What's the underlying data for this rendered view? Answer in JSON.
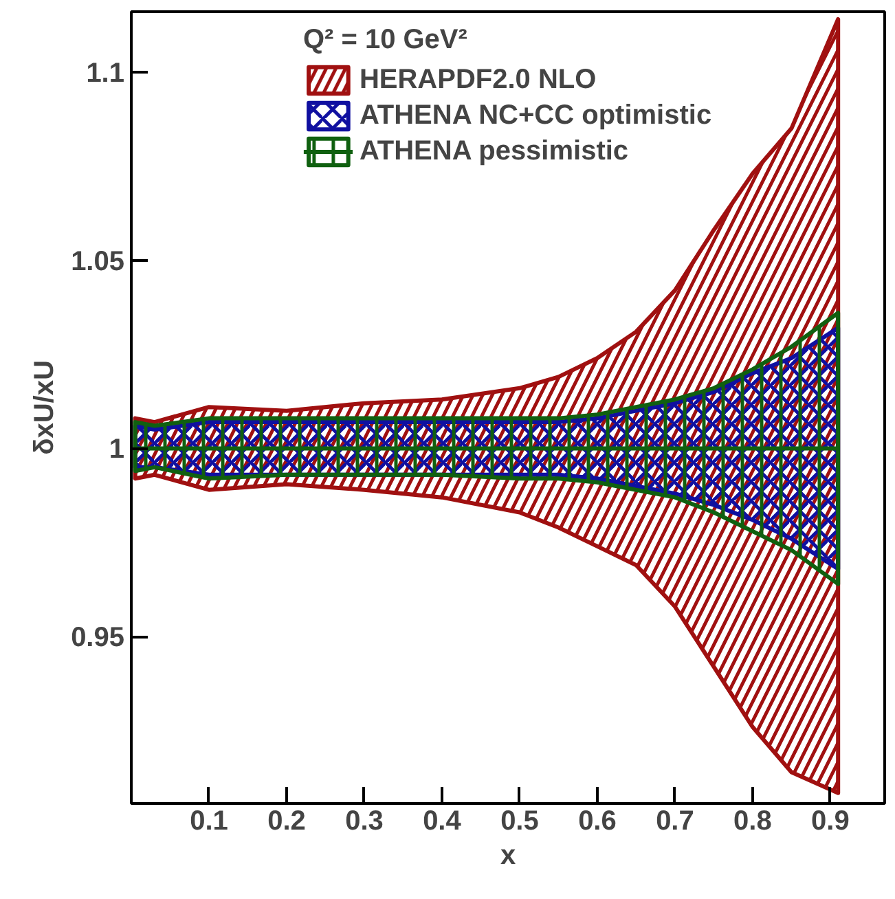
{
  "chart_data": {
    "type": "line",
    "xlabel": "x",
    "ylabel": "δxU/xU",
    "legend_title": "Q² = 10 GeV²",
    "x": [
      0.005,
      0.03,
      0.1,
      0.2,
      0.3,
      0.4,
      0.5,
      0.55,
      0.6,
      0.65,
      0.7,
      0.75,
      0.8,
      0.85,
      0.91
    ],
    "series": [
      {
        "name": "HERAPDF2.0 NLO",
        "color": "#a01010",
        "values": [
          null,
          null,
          null,
          null,
          null,
          null,
          null,
          null,
          null,
          null,
          null,
          null,
          null,
          null,
          null
        ],
        "lower": [
          0.992,
          0.993,
          0.989,
          0.9905,
          0.989,
          0.987,
          0.983,
          0.979,
          0.974,
          0.969,
          0.958,
          0.942,
          0.926,
          0.914,
          0.9085
        ],
        "upper": [
          1.008,
          1.007,
          1.011,
          1.01,
          1.012,
          1.013,
          1.016,
          1.019,
          1.024,
          1.031,
          1.042,
          1.058,
          1.073,
          1.085,
          1.114
        ]
      },
      {
        "name": "ATHENA NC+CC optimistic",
        "color": "#1010a0",
        "values": [
          null,
          null,
          null,
          null,
          null,
          null,
          null,
          null,
          null,
          null,
          null,
          null,
          null,
          null,
          null
        ],
        "lower": [
          0.995,
          0.995,
          0.993,
          0.993,
          0.993,
          0.993,
          0.993,
          0.993,
          0.992,
          0.99,
          0.988,
          0.985,
          0.981,
          0.976,
          0.968
        ],
        "upper": [
          1.006,
          1.005,
          1.007,
          1.007,
          1.007,
          1.007,
          1.007,
          1.007,
          1.008,
          1.01,
          1.012,
          1.015,
          1.02,
          1.024,
          1.032
        ]
      },
      {
        "name": "ATHENA pessimistic",
        "color": "#106010",
        "values": [
          1,
          1,
          1,
          1,
          1,
          1,
          1,
          1,
          1,
          1,
          1,
          1,
          1,
          1,
          1
        ],
        "lower": [
          0.994,
          0.995,
          0.992,
          0.993,
          0.993,
          0.993,
          0.992,
          0.992,
          0.991,
          0.989,
          0.987,
          0.983,
          0.978,
          0.973,
          0.964
        ],
        "upper": [
          1.007,
          1.006,
          1.008,
          1.008,
          1.008,
          1.008,
          1.008,
          1.008,
          1.009,
          1.011,
          1.013,
          1.016,
          1.021,
          1.027,
          1.036
        ]
      }
    ],
    "xlim": [
      0,
      0.97
    ],
    "ylim": [
      0.9057,
      1.116
    ],
    "xticks": [
      0.1,
      0.2,
      0.3,
      0.4,
      0.5,
      0.6,
      0.7,
      0.8,
      0.9
    ],
    "yticks": [
      0.95,
      1,
      1.05,
      1.1
    ],
    "grid": false,
    "legend": "top"
  }
}
